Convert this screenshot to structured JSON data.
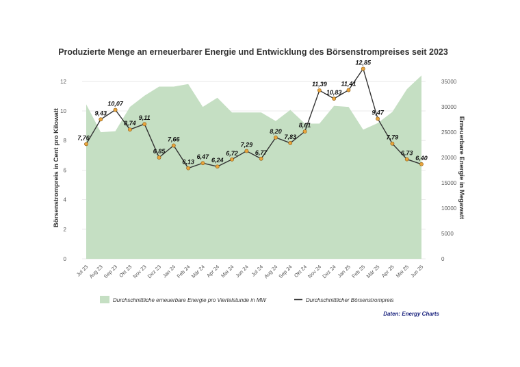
{
  "chart_data": {
    "type": "line",
    "title": "Produzierte Menge an erneuerbarer Energie und Entwicklung des Börsenstrompreises seit 2023",
    "categories": [
      "Jul 23",
      "Aug 23",
      "Sep 23",
      "Okt 23",
      "Nov 23",
      "Dez 23",
      "Jan 24",
      "Feb 24",
      "Mär 24",
      "Apr 24",
      "Mai 24",
      "Jun 24",
      "Jul 24",
      "Aug 24",
      "Sep 24",
      "Okt 24",
      "Nov 24",
      "Dez 24",
      "Jan 25",
      "Feb 25",
      "Mär 25",
      "Apr 25",
      "Mai 25",
      "Jun 25"
    ],
    "series": [
      {
        "name": "Durchschnittliche erneuerbare Energie pro Viertelstunde in MW",
        "type": "area",
        "axis": "right",
        "color": "#c5dfc3",
        "values": [
          30500,
          25000,
          25200,
          30000,
          32200,
          34000,
          34000,
          34500,
          30000,
          31800,
          28900,
          28900,
          28900,
          27200,
          29400,
          26700,
          26700,
          30200,
          30000,
          25500,
          26800,
          29000,
          33500,
          36200
        ]
      },
      {
        "name": "Durchschnittlicher Börsenstrompreis",
        "type": "line",
        "axis": "left",
        "color": "#333333",
        "marker_color": "#e8a33c",
        "values": [
          7.76,
          9.43,
          10.07,
          8.74,
          9.11,
          6.85,
          7.66,
          6.13,
          6.47,
          6.24,
          6.72,
          7.29,
          6.77,
          8.2,
          7.83,
          8.61,
          11.39,
          10.83,
          11.41,
          12.85,
          9.47,
          7.79,
          6.73,
          6.4
        ],
        "labels": [
          "7,76",
          "9,43",
          "10,07",
          "8,74",
          "9,11",
          "6,85",
          "7,66",
          "6,13",
          "6,47",
          "6,24",
          "6,72",
          "7,29",
          "6,77",
          "8,20",
          "7,83",
          "8,61",
          "11,39",
          "10,83",
          "11,41",
          "12,85",
          "9,47",
          "7,79",
          "6,73",
          "6,40"
        ]
      }
    ],
    "y_left": {
      "label": "Börsenstrompreis in Cent pro Kilowatt",
      "ylim": [
        0,
        12.5
      ],
      "ticks": [
        "0",
        "2",
        "4",
        "6",
        "8",
        "10",
        "12"
      ]
    },
    "y_right": {
      "label": "Erneuerbare Energie in Megawatt",
      "ylim": [
        0,
        36500
      ],
      "ticks": [
        "0",
        "5000",
        "10000",
        "15000",
        "20000",
        "25000",
        "30000",
        "35000"
      ]
    },
    "grid": true,
    "legend_position": "bottom",
    "source": "Daten: Energy Charts"
  }
}
